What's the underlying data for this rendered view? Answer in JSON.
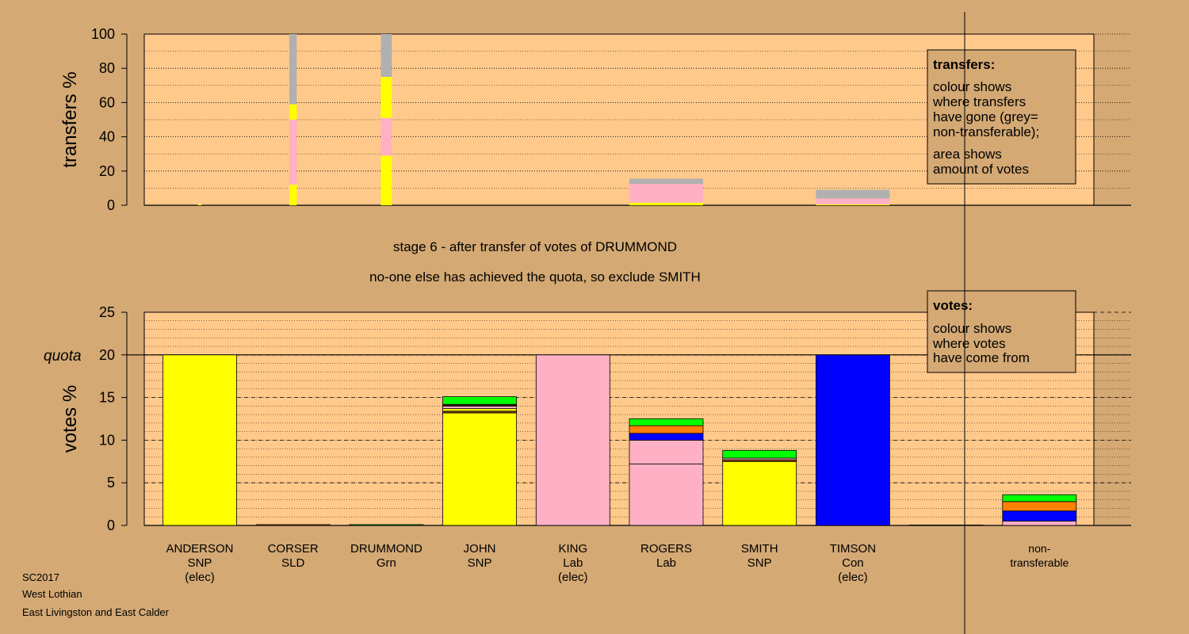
{
  "stage_title": "stage 6 - after transfer of votes of DRUMMOND",
  "stage_subtitle": "no-one else has achieved the quota, so exclude SMITH",
  "footer": [
    "SC2017",
    "West Lothian",
    "East Livingston and East Calder"
  ],
  "legends": {
    "transfers": {
      "title": "transfers:",
      "lines": [
        "colour shows",
        "where transfers",
        "have gone (grey=",
        "non-transferable);",
        "area shows",
        "amount of votes"
      ]
    },
    "votes": {
      "title": "votes:",
      "lines": [
        "colour shows",
        "where votes",
        "have come from"
      ]
    }
  },
  "colors": {
    "background": "#d4a974",
    "plot_bg": "#ffc98b",
    "SNP": "#ffff00",
    "Lab": "#ffb0c4",
    "Con": "#0000ff",
    "Grn": "#00ff00",
    "SLD": "#ff8000",
    "nontransferable": "#b0b0b0",
    "other": "#8b4513"
  },
  "chart_data": [
    {
      "type": "bar",
      "name": "transfers",
      "ylabel": "transfers %",
      "ylim": [
        0,
        100
      ],
      "yticks": [
        0,
        20,
        40,
        60,
        80,
        100
      ],
      "bars": [
        {
          "candidate": "ANDERSON",
          "width": 0.05,
          "stack": [
            [
              "SNP",
              0.5
            ]
          ]
        },
        {
          "candidate": "CORSER",
          "width": 0.1,
          "stack": [
            [
              "SNP",
              12
            ],
            [
              "Lab",
              38
            ],
            [
              "SNP",
              9
            ],
            [
              "nontransferable",
              41
            ]
          ]
        },
        {
          "candidate": "DRUMMOND",
          "width": 0.15,
          "stack": [
            [
              "SNP",
              29
            ],
            [
              "Lab",
              22
            ],
            [
              "SNP",
              24
            ],
            [
              "nontransferable",
              25
            ]
          ]
        },
        {
          "candidate": "ROGERS",
          "width": 1.0,
          "stack": [
            [
              "SNP",
              1.5
            ],
            [
              "Lab",
              11
            ],
            [
              "nontransferable",
              3
            ]
          ]
        },
        {
          "candidate": "TIMSON",
          "width": 1.0,
          "stack": [
            [
              "SNP",
              0.5
            ],
            [
              "Lab",
              3.5
            ],
            [
              "nontransferable",
              5
            ]
          ]
        }
      ],
      "legend": "top-right"
    },
    {
      "type": "bar",
      "name": "votes",
      "ylabel": "votes %",
      "ylim": [
        0,
        25
      ],
      "yticks": [
        0,
        5,
        10,
        15,
        20,
        25
      ],
      "quota": 20,
      "quota_label": "quota",
      "categories": [
        {
          "lines": [
            "ANDERSON",
            "SNP",
            "(elec)"
          ]
        },
        {
          "lines": [
            "CORSER",
            "SLD"
          ]
        },
        {
          "lines": [
            "DRUMMOND",
            "Grn"
          ]
        },
        {
          "lines": [
            "JOHN",
            "SNP"
          ]
        },
        {
          "lines": [
            "KING",
            "Lab",
            "(elec)"
          ]
        },
        {
          "lines": [
            "ROGERS",
            "Lab"
          ]
        },
        {
          "lines": [
            "SMITH",
            "SNP"
          ]
        },
        {
          "lines": [
            "TIMSON",
            "Con",
            "(elec)"
          ]
        },
        {
          "lines": []
        },
        {
          "lines": [
            "non-",
            "transferable"
          ]
        }
      ],
      "stacks": [
        [
          [
            "SNP",
            20
          ]
        ],
        [
          [
            "SLD",
            0.1
          ]
        ],
        [
          [
            "Grn",
            0.1
          ]
        ],
        [
          [
            "SNP",
            13.2
          ],
          [
            "other",
            0.2
          ],
          [
            "SNP",
            0.3
          ],
          [
            "Lab",
            0.3
          ],
          [
            "SLD",
            0.1
          ],
          [
            "other",
            0.1
          ],
          [
            "Grn",
            0.9
          ]
        ],
        [
          [
            "Lab",
            20
          ]
        ],
        [
          [
            "Lab",
            7.2
          ],
          [
            "Lab",
            2.8
          ],
          [
            "Con",
            0.8
          ],
          [
            "SLD",
            0.9
          ],
          [
            "Grn",
            0.8
          ]
        ],
        [
          [
            "SNP",
            7.5
          ],
          [
            "other",
            0.2
          ],
          [
            "Lab",
            0.2
          ],
          [
            "Grn",
            0.9
          ]
        ],
        [
          [
            "Con",
            20
          ]
        ],
        [
          [
            "SNP",
            0.05
          ]
        ],
        [
          [
            "Lab",
            0.5
          ],
          [
            "Con",
            1.2
          ],
          [
            "SLD",
            1.1
          ],
          [
            "Grn",
            0.8
          ]
        ]
      ],
      "legend": "top-right"
    }
  ]
}
